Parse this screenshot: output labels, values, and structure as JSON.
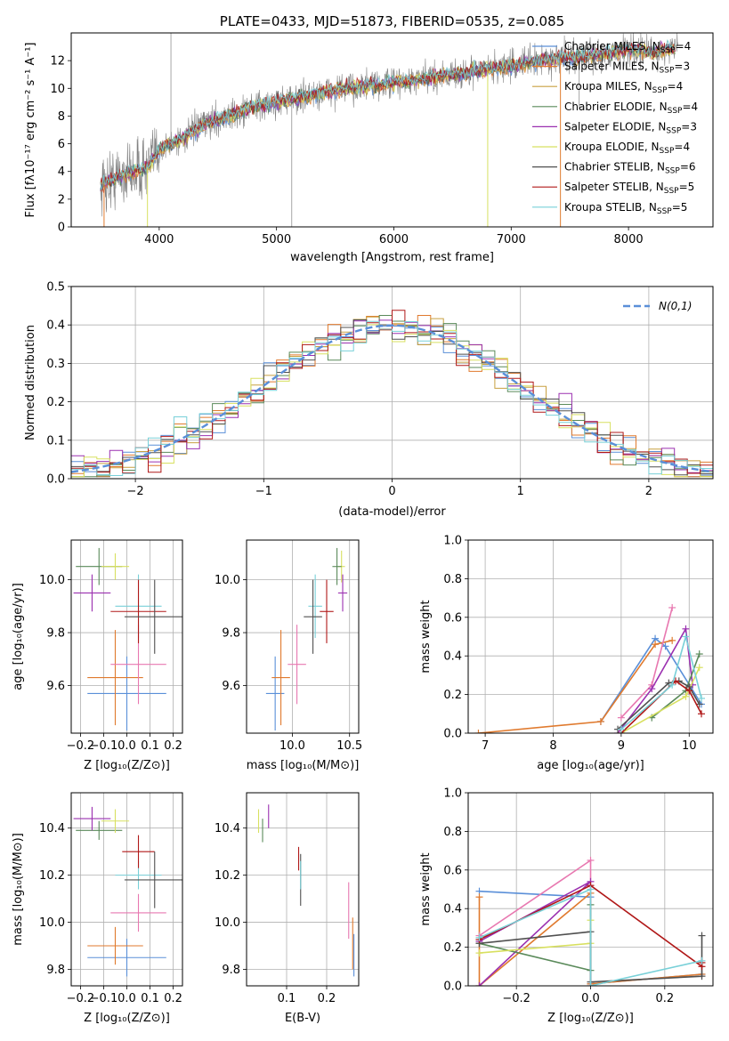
{
  "colors": {
    "Chabrier MILES": "#5a8fd8",
    "Salpeter MILES": "#e07a2e",
    "Kroupa MILES": "#c8a040",
    "Chabrier ELODIE": "#5a8a5a",
    "Salpeter ELODIE": "#9b30b0",
    "Kroupa ELODIE": "#d8e060",
    "Chabrier STELIB": "#505050",
    "Salpeter STELIB": "#b01818",
    "Kroupa STELIB": "#78d0d8",
    "extra_pink": "#e878b0",
    "normal": "#5a8fd8"
  },
  "chart_data": [
    {
      "id": "spectrum",
      "type": "line",
      "title": "PLATE=0433, MJD=51873, FIBERID=0535, z=0.085",
      "xlabel": "wavelength [Angstrom, rest frame]",
      "ylabel": "Flux [fλ10⁻¹⁷ erg cm⁻² s⁻¹ A⁻¹]",
      "xlim": [
        3250,
        8720
      ],
      "ylim": [
        0,
        14
      ],
      "xticks": [
        4000,
        5000,
        6000,
        7000,
        8000
      ],
      "yticks": [
        0,
        2,
        4,
        6,
        8,
        10,
        12
      ],
      "legend_position": "top-right",
      "legend": [
        {
          "label": "Chabrier MILES, N",
          "sub": "SSP",
          "val": "=4",
          "series": "Chabrier MILES"
        },
        {
          "label": "Salpeter MILES, N",
          "sub": "SSP",
          "val": "=3",
          "series": "Salpeter MILES"
        },
        {
          "label": "Kroupa MILES, N",
          "sub": "SSP",
          "val": "=4",
          "series": "Kroupa MILES"
        },
        {
          "label": "Chabrier ELODIE, N",
          "sub": "SSP",
          "val": "=4",
          "series": "Chabrier ELODIE"
        },
        {
          "label": "Salpeter ELODIE, N",
          "sub": "SSP",
          "val": "=3",
          "series": "Salpeter ELODIE"
        },
        {
          "label": "Kroupa ELODIE, N",
          "sub": "SSP",
          "val": "=4",
          "series": "Kroupa ELODIE"
        },
        {
          "label": "Chabrier STELIB, N",
          "sub": "SSP",
          "val": "=6",
          "series": "Chabrier STELIB"
        },
        {
          "label": "Salpeter STELIB, N",
          "sub": "SSP",
          "val": "=5",
          "series": "Salpeter STELIB"
        },
        {
          "label": "Kroupa STELIB, N",
          "sub": "SSP",
          "val": "=5",
          "series": "Kroupa STELIB"
        }
      ],
      "continuum": [
        [
          3500,
          3.0
        ],
        [
          3700,
          3.8
        ],
        [
          3900,
          4.3
        ],
        [
          4000,
          5.6
        ],
        [
          4200,
          6.4
        ],
        [
          4400,
          7.5
        ],
        [
          4600,
          8.0
        ],
        [
          4800,
          8.6
        ],
        [
          5000,
          9.0
        ],
        [
          5200,
          9.3
        ],
        [
          5400,
          9.7
        ],
        [
          5600,
          10.0
        ],
        [
          5800,
          10.2
        ],
        [
          6000,
          10.4
        ],
        [
          6200,
          10.6
        ],
        [
          6400,
          10.9
        ],
        [
          6600,
          11.1
        ],
        [
          6800,
          11.4
        ],
        [
          7000,
          11.6
        ],
        [
          7200,
          12.0
        ],
        [
          7400,
          12.2
        ],
        [
          7600,
          12.3
        ],
        [
          7800,
          12.5
        ],
        [
          8000,
          12.8
        ],
        [
          8200,
          12.6
        ],
        [
          8400,
          12.9
        ]
      ],
      "data_spikes": [
        [
          5130,
          0
        ],
        [
          4100,
          14
        ],
        [
          4860,
          7.6
        ],
        [
          6560,
          11.3
        ],
        [
          7580,
          8.5
        ]
      ]
    },
    {
      "id": "residuals",
      "type": "histogram",
      "xlabel": "(data-model)/error",
      "ylabel": "Normed distribution",
      "xlim": [
        -2.5,
        2.5
      ],
      "ylim": [
        0,
        0.5
      ],
      "xticks": [
        -2,
        -1,
        0,
        1,
        2
      ],
      "yticks": [
        0.0,
        0.1,
        0.2,
        0.3,
        0.4,
        0.5
      ],
      "legend_position": "top-right",
      "legend": [
        {
          "label": "N(0,1)",
          "series": "normal"
        }
      ],
      "bin_width": 0.1,
      "bin_start": -2.5
    },
    {
      "id": "age_vs_Z",
      "type": "errorbar",
      "xlabel": "Z [log₁₀(Z/Z⊙)]",
      "ylabel": "age  [log₁₀(age/yr)]",
      "xlim": [
        -0.24,
        0.24
      ],
      "ylim": [
        9.42,
        10.15
      ],
      "xticks": [
        -0.2,
        -0.1,
        0.0,
        0.1,
        0.2
      ],
      "yticks": [
        9.6,
        9.8,
        10.0
      ],
      "points": [
        {
          "s": "Chabrier MILES",
          "x": 0.0,
          "y": 9.57,
          "xe": 0.17,
          "ye": 0.14
        },
        {
          "s": "Salpeter MILES",
          "x": -0.05,
          "y": 9.63,
          "xe": 0.12,
          "ye": 0.18
        },
        {
          "s": "extra_pink",
          "x": 0.05,
          "y": 9.68,
          "xe": 0.12,
          "ye": 0.15
        },
        {
          "s": "Kroupa STELIB",
          "x": 0.05,
          "y": 9.9,
          "xe": 0.1,
          "ye": 0.12
        },
        {
          "s": "Salpeter STELIB",
          "x": 0.05,
          "y": 9.88,
          "xe": 0.12,
          "ye": 0.12
        },
        {
          "s": "Chabrier STELIB",
          "x": 0.12,
          "y": 9.86,
          "xe": 0.13,
          "ye": 0.14
        },
        {
          "s": "Chabrier ELODIE",
          "x": -0.12,
          "y": 10.05,
          "xe": 0.1,
          "ye": 0.07
        },
        {
          "s": "Kroupa ELODIE",
          "x": -0.05,
          "y": 10.05,
          "xe": 0.06,
          "ye": 0.05
        },
        {
          "s": "Salpeter ELODIE",
          "x": -0.15,
          "y": 9.95,
          "xe": 0.08,
          "ye": 0.07
        }
      ]
    },
    {
      "id": "age_vs_mass",
      "type": "errorbar",
      "xlabel": "mass [log₁₀(M/M⊙)]",
      "ylabel": "",
      "xlim": [
        9.6,
        10.58
      ],
      "ylim": [
        9.42,
        10.15
      ],
      "xticks": [
        10.0,
        10.5
      ],
      "yticks": [
        9.6,
        9.8,
        10.0
      ],
      "points": [
        {
          "s": "Chabrier MILES",
          "x": 9.85,
          "y": 9.57,
          "xe": 0.08,
          "ye": 0.14
        },
        {
          "s": "Salpeter MILES",
          "x": 9.9,
          "y": 9.63,
          "xe": 0.08,
          "ye": 0.18
        },
        {
          "s": "extra_pink",
          "x": 10.04,
          "y": 9.68,
          "xe": 0.08,
          "ye": 0.15
        },
        {
          "s": "Kroupa STELIB",
          "x": 10.2,
          "y": 9.9,
          "xe": 0.06,
          "ye": 0.12
        },
        {
          "s": "Chabrier STELIB",
          "x": 10.18,
          "y": 9.86,
          "xe": 0.08,
          "ye": 0.14
        },
        {
          "s": "Salpeter STELIB",
          "x": 10.3,
          "y": 9.88,
          "xe": 0.06,
          "ye": 0.12
        },
        {
          "s": "Kroupa ELODIE",
          "x": 10.43,
          "y": 10.05,
          "xe": 0.03,
          "ye": 0.06
        },
        {
          "s": "Chabrier ELODIE",
          "x": 10.39,
          "y": 10.05,
          "xe": 0.04,
          "ye": 0.07
        },
        {
          "s": "Salpeter ELODIE",
          "x": 10.44,
          "y": 9.95,
          "xe": 0.04,
          "ye": 0.07
        }
      ]
    },
    {
      "id": "weight_vs_age",
      "type": "line",
      "xlabel": "age  [log₁₀(age/yr)]",
      "ylabel": "mass weight",
      "xlim": [
        6.75,
        10.35
      ],
      "ylim": [
        0,
        1.0
      ],
      "xticks": [
        7,
        8,
        9,
        10
      ],
      "yticks": [
        0.0,
        0.2,
        0.4,
        0.6,
        0.8,
        1.0
      ],
      "series": [
        {
          "s": "Chabrier MILES",
          "x": [
            8.7,
            9.5,
            9.65,
            10.18
          ],
          "y": [
            0.06,
            0.49,
            0.45,
            0.15
          ]
        },
        {
          "s": "Salpeter MILES",
          "x": [
            6.9,
            8.7,
            9.5,
            9.75
          ],
          "y": [
            0.0,
            0.06,
            0.46,
            0.48
          ]
        },
        {
          "s": "extra_pink",
          "x": [
            9.0,
            9.45,
            9.75
          ],
          "y": [
            0.08,
            0.25,
            0.65
          ]
        },
        {
          "s": "Salpeter ELODIE",
          "x": [
            8.95,
            9.45,
            9.95,
            10.05
          ],
          "y": [
            0.0,
            0.23,
            0.54,
            0.25
          ]
        },
        {
          "s": "Chabrier ELODIE",
          "x": [
            9.45,
            9.95,
            10.15
          ],
          "y": [
            0.08,
            0.22,
            0.41
          ]
        },
        {
          "s": "Kroupa ELODIE",
          "x": [
            9.0,
            9.95,
            10.15
          ],
          "y": [
            0.0,
            0.19,
            0.34
          ]
        },
        {
          "s": "Chabrier STELIB",
          "x": [
            8.95,
            9.7,
            9.85,
            10.0,
            10.15
          ],
          "y": [
            0.02,
            0.26,
            0.27,
            0.24,
            0.15
          ]
        },
        {
          "s": "Salpeter STELIB",
          "x": [
            9.0,
            9.8,
            10.0,
            10.18
          ],
          "y": [
            0.0,
            0.27,
            0.22,
            0.1
          ]
        },
        {
          "s": "Kroupa STELIB",
          "x": [
            9.0,
            9.75,
            9.95,
            10.18
          ],
          "y": [
            0.02,
            0.25,
            0.5,
            0.18
          ]
        }
      ]
    },
    {
      "id": "mass_vs_Z",
      "type": "errorbar",
      "xlabel": "Z [log₁₀(Z/Z⊙)]",
      "ylabel": "mass [log₁₀(M/M⊙)]",
      "xlim": [
        -0.24,
        0.24
      ],
      "ylim": [
        9.73,
        10.55
      ],
      "xticks": [
        -0.2,
        -0.1,
        0.0,
        0.1,
        0.2
      ],
      "yticks": [
        9.8,
        10.0,
        10.2,
        10.4
      ],
      "points": [
        {
          "s": "Chabrier MILES",
          "x": 0.0,
          "y": 9.85,
          "xe": 0.17,
          "ye": 0.08
        },
        {
          "s": "Salpeter MILES",
          "x": -0.05,
          "y": 9.9,
          "xe": 0.12,
          "ye": 0.08
        },
        {
          "s": "extra_pink",
          "x": 0.05,
          "y": 10.04,
          "xe": 0.12,
          "ye": 0.08
        },
        {
          "s": "Kroupa STELIB",
          "x": 0.05,
          "y": 10.2,
          "xe": 0.1,
          "ye": 0.06
        },
        {
          "s": "Salpeter STELIB",
          "x": 0.05,
          "y": 10.3,
          "xe": 0.07,
          "ye": 0.07
        },
        {
          "s": "Chabrier STELIB",
          "x": 0.12,
          "y": 10.18,
          "xe": 0.13,
          "ye": 0.12
        },
        {
          "s": "Chabrier ELODIE",
          "x": -0.12,
          "y": 10.39,
          "xe": 0.1,
          "ye": 0.04
        },
        {
          "s": "Kroupa ELODIE",
          "x": -0.05,
          "y": 10.43,
          "xe": 0.06,
          "ye": 0.05
        },
        {
          "s": "Salpeter ELODIE",
          "x": -0.15,
          "y": 10.44,
          "xe": 0.08,
          "ye": 0.05
        }
      ]
    },
    {
      "id": "mass_vs_EBV",
      "type": "errorbar",
      "xlabel": "E(B-V)",
      "ylabel": "",
      "xlim": [
        0.0,
        0.28
      ],
      "ylim": [
        9.73,
        10.55
      ],
      "xticks": [
        0.1,
        0.2
      ],
      "yticks": [
        9.8,
        10.0,
        10.2,
        10.4
      ],
      "points": [
        {
          "s": "Kroupa ELODIE",
          "x": 0.03,
          "y": 10.43,
          "xe": 0.0,
          "ye": 0.05
        },
        {
          "s": "Chabrier ELODIE",
          "x": 0.04,
          "y": 10.39,
          "xe": 0.0,
          "ye": 0.05
        },
        {
          "s": "Salpeter ELODIE",
          "x": 0.055,
          "y": 10.45,
          "xe": 0.0,
          "ye": 0.05
        },
        {
          "s": "Salpeter STELIB",
          "x": 0.13,
          "y": 10.27,
          "xe": 0.0,
          "ye": 0.05
        },
        {
          "s": "Chabrier STELIB",
          "x": 0.135,
          "y": 10.18,
          "xe": 0.0,
          "ye": 0.11
        },
        {
          "s": "Kroupa STELIB",
          "x": 0.135,
          "y": 10.2,
          "xe": 0.0,
          "ye": 0.06
        },
        {
          "s": "extra_pink",
          "x": 0.255,
          "y": 10.05,
          "xe": 0.0,
          "ye": 0.12
        },
        {
          "s": "Salpeter MILES",
          "x": 0.265,
          "y": 9.91,
          "xe": 0.0,
          "ye": 0.11
        },
        {
          "s": "Chabrier MILES",
          "x": 0.268,
          "y": 9.86,
          "xe": 0.0,
          "ye": 0.09
        }
      ]
    },
    {
      "id": "weight_vs_Z",
      "type": "line",
      "xlabel": "Z [log₁₀(Z/Z⊙)]",
      "ylabel": "mass weight",
      "xlim": [
        -0.33,
        0.33
      ],
      "ylim": [
        0,
        1.0
      ],
      "xticks": [
        -0.2,
        0.0,
        0.2
      ],
      "yticks": [
        0.0,
        0.2,
        0.4,
        0.6,
        0.8,
        1.0
      ],
      "series": [
        {
          "s": "Chabrier MILES",
          "x": [
            -0.3,
            0.0,
            0.0,
            0.3
          ],
          "y": [
            0.49,
            0.46,
            0.01,
            0.06
          ]
        },
        {
          "s": "Salpeter MILES",
          "x": [
            -0.3,
            -0.3,
            0.0,
            0.0,
            0.3
          ],
          "y": [
            0.46,
            0.0,
            0.48,
            0.01,
            0.06
          ]
        },
        {
          "s": "extra_pink",
          "x": [
            -0.3,
            0.0,
            0.0
          ],
          "y": [
            0.26,
            0.65,
            0.0
          ]
        },
        {
          "s": "Salpeter ELODIE",
          "x": [
            -0.3,
            0.0,
            -0.3
          ],
          "y": [
            0.0,
            0.54,
            0.23
          ]
        },
        {
          "s": "Chabrier ELODIE",
          "x": [
            -0.3,
            0.0,
            0.0
          ],
          "y": [
            0.22,
            0.08,
            0.42
          ]
        },
        {
          "s": "Kroupa ELODIE",
          "x": [
            -0.3,
            0.0,
            0.0
          ],
          "y": [
            0.17,
            0.22,
            0.34
          ]
        },
        {
          "s": "Chabrier STELIB",
          "x": [
            -0.3,
            0.0,
            0.0,
            0.3,
            0.3
          ],
          "y": [
            0.22,
            0.28,
            0.02,
            0.05,
            0.26
          ]
        },
        {
          "s": "Salpeter STELIB",
          "x": [
            -0.3,
            0.0,
            0.3,
            0.3
          ],
          "y": [
            0.24,
            0.52,
            0.1,
            0.12
          ]
        },
        {
          "s": "Kroupa STELIB",
          "x": [
            -0.3,
            0.0,
            0.0,
            0.3
          ],
          "y": [
            0.25,
            0.5,
            0.0,
            0.13
          ]
        }
      ]
    }
  ]
}
